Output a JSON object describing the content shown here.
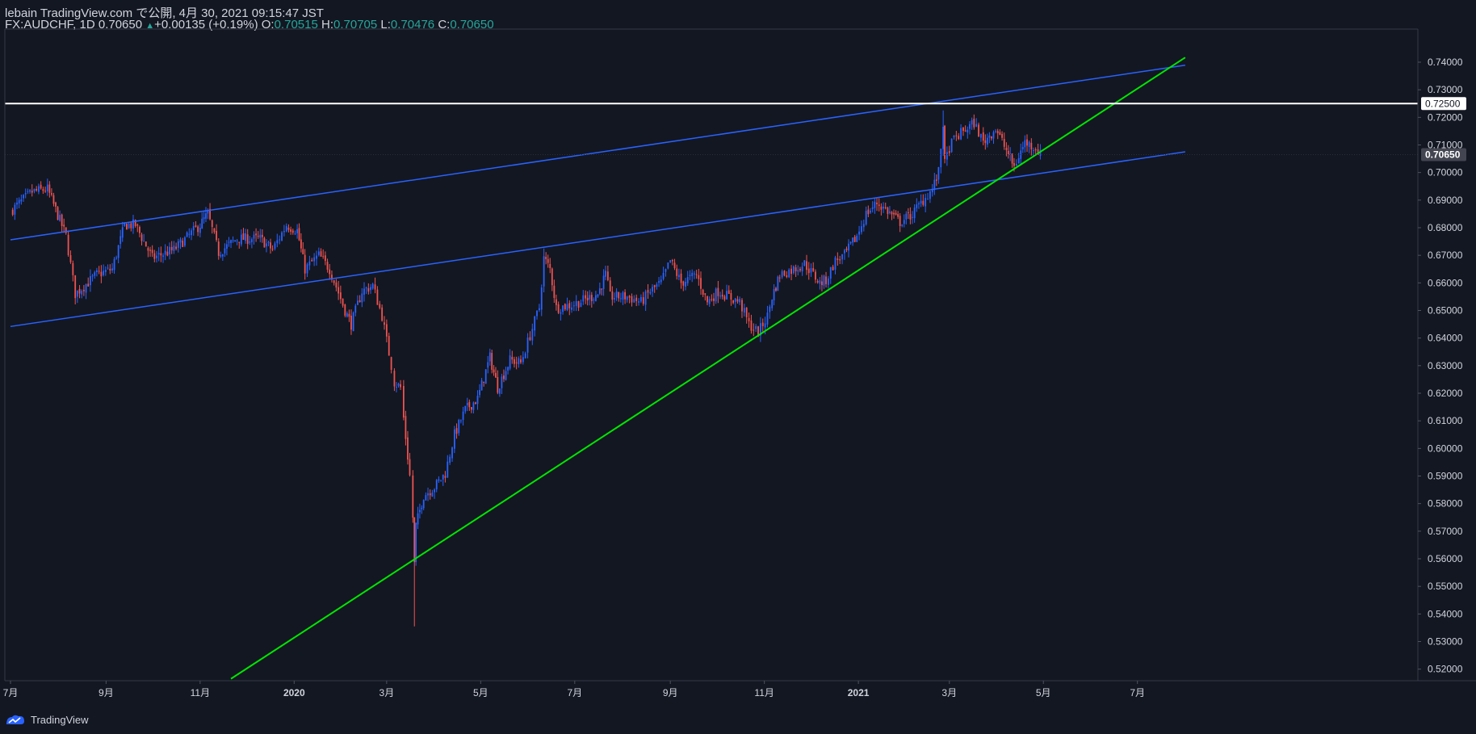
{
  "header": {
    "line1": "lebain TradingView.com で公開, 4月 30, 2021 09:15:47 JST",
    "symbol": "FX:AUDCHF, 1D 0.70650",
    "change": "+0.00135 (+0.19%)",
    "o_label": "O:",
    "o": "0.70515",
    "h_label": "H:",
    "h": "0.70705",
    "l_label": "L:",
    "l": "0.70476",
    "c_label": "C:",
    "c": "0.70650"
  },
  "footer": {
    "brand": "TradingView"
  },
  "colors": {
    "background": "#131722",
    "up": "#2962ff",
    "down": "#ef5350",
    "channel": "#2962ff",
    "trendline": "#00e600",
    "level": "#ffffff",
    "text": "#d1d4dc"
  },
  "chart_data": {
    "type": "candlestick",
    "symbol": "FX:AUDCHF",
    "timeframe": "1D",
    "x_ticks": [
      "7月",
      "9月",
      "11月",
      "2020",
      "3月",
      "5月",
      "7月",
      "9月",
      "11月",
      "2021",
      "3月",
      "5月",
      "7月"
    ],
    "y_ticks": [
      "0.74000",
      "0.73000",
      "0.72000",
      "0.71000",
      "0.70000",
      "0.69000",
      "0.68000",
      "0.67000",
      "0.66000",
      "0.65000",
      "0.64000",
      "0.63000",
      "0.62000",
      "0.61000",
      "0.60000",
      "0.59000",
      "0.58000",
      "0.57000",
      "0.56000",
      "0.55000",
      "0.54000",
      "0.53000",
      "0.52000"
    ],
    "ylim": [
      0.515,
      0.742
    ],
    "price_labels": {
      "level": "0.72500",
      "last": "0.70650"
    },
    "horizontal_level": 0.725,
    "last_price": 0.7065,
    "anchors": [
      [
        "2019-07-01",
        0.686
      ],
      [
        "2019-07-15",
        0.693
      ],
      [
        "2019-07-25",
        0.694
      ],
      [
        "2019-08-06",
        0.677
      ],
      [
        "2019-08-12",
        0.656
      ],
      [
        "2019-08-26",
        0.663
      ],
      [
        "2019-09-05",
        0.665
      ],
      [
        "2019-09-13",
        0.681
      ],
      [
        "2019-09-20",
        0.681
      ],
      [
        "2019-10-01",
        0.669
      ],
      [
        "2019-10-15",
        0.672
      ],
      [
        "2019-11-01",
        0.681
      ],
      [
        "2019-11-06",
        0.685
      ],
      [
        "2019-11-13",
        0.671
      ],
      [
        "2019-11-25",
        0.676
      ],
      [
        "2019-12-10",
        0.676
      ],
      [
        "2019-12-18",
        0.672
      ],
      [
        "2019-12-27",
        0.681
      ],
      [
        "2020-01-03",
        0.679
      ],
      [
        "2020-01-08",
        0.665
      ],
      [
        "2020-01-17",
        0.67
      ],
      [
        "2020-01-24",
        0.665
      ],
      [
        "2020-02-03",
        0.65
      ],
      [
        "2020-02-07",
        0.645
      ],
      [
        "2020-02-14",
        0.657
      ],
      [
        "2020-02-21",
        0.659
      ],
      [
        "2020-02-27",
        0.648
      ],
      [
        "2020-03-04",
        0.63
      ],
      [
        "2020-03-06",
        0.624
      ],
      [
        "2020-03-10",
        0.622
      ],
      [
        "2020-03-12",
        0.611
      ],
      [
        "2020-03-16",
        0.59
      ],
      [
        "2020-03-18",
        0.575
      ],
      [
        "2020-03-19",
        0.558
      ],
      [
        "2020-03-20",
        0.572
      ],
      [
        "2020-03-25",
        0.583
      ],
      [
        "2020-04-01",
        0.586
      ],
      [
        "2020-04-08",
        0.591
      ],
      [
        "2020-04-14",
        0.605
      ],
      [
        "2020-04-21",
        0.614
      ],
      [
        "2020-04-29",
        0.618
      ],
      [
        "2020-05-07",
        0.633
      ],
      [
        "2020-05-12",
        0.622
      ],
      [
        "2020-05-20",
        0.632
      ],
      [
        "2020-05-27",
        0.631
      ],
      [
        "2020-06-02",
        0.641
      ],
      [
        "2020-06-08",
        0.651
      ],
      [
        "2020-06-11",
        0.669
      ],
      [
        "2020-06-15",
        0.665
      ],
      [
        "2020-06-19",
        0.651
      ],
      [
        "2020-06-29",
        0.652
      ],
      [
        "2020-07-08",
        0.654
      ],
      [
        "2020-07-16",
        0.656
      ],
      [
        "2020-07-21",
        0.663
      ],
      [
        "2020-07-24",
        0.655
      ],
      [
        "2020-08-04",
        0.655
      ],
      [
        "2020-08-13",
        0.653
      ],
      [
        "2020-08-19",
        0.657
      ],
      [
        "2020-08-26",
        0.66
      ],
      [
        "2020-09-01",
        0.668
      ],
      [
        "2020-09-08",
        0.66
      ],
      [
        "2020-09-18",
        0.663
      ],
      [
        "2020-09-25",
        0.653
      ],
      [
        "2020-10-02",
        0.657
      ],
      [
        "2020-10-09",
        0.655
      ],
      [
        "2020-10-16",
        0.653
      ],
      [
        "2020-10-22",
        0.645
      ],
      [
        "2020-10-28",
        0.642
      ],
      [
        "2020-11-03",
        0.648
      ],
      [
        "2020-11-06",
        0.655
      ],
      [
        "2020-11-11",
        0.663
      ],
      [
        "2020-11-20",
        0.665
      ],
      [
        "2020-11-27",
        0.667
      ],
      [
        "2020-12-07",
        0.66
      ],
      [
        "2020-12-11",
        0.661
      ],
      [
        "2020-12-17",
        0.668
      ],
      [
        "2020-12-23",
        0.67
      ],
      [
        "2020-12-31",
        0.677
      ],
      [
        "2021-01-06",
        0.685
      ],
      [
        "2021-01-13",
        0.689
      ],
      [
        "2021-01-20",
        0.686
      ],
      [
        "2021-01-28",
        0.682
      ],
      [
        "2021-02-05",
        0.685
      ],
      [
        "2021-02-12",
        0.69
      ],
      [
        "2021-02-18",
        0.694
      ],
      [
        "2021-02-22",
        0.7
      ],
      [
        "2021-02-25",
        0.718
      ],
      [
        "2021-02-26",
        0.703
      ],
      [
        "2021-03-01",
        0.709
      ],
      [
        "2021-03-04",
        0.712
      ],
      [
        "2021-03-10",
        0.715
      ],
      [
        "2021-03-17",
        0.718
      ],
      [
        "2021-03-23",
        0.711
      ],
      [
        "2021-03-31",
        0.716
      ],
      [
        "2021-04-07",
        0.708
      ],
      [
        "2021-04-12",
        0.702
      ],
      [
        "2021-04-15",
        0.706
      ],
      [
        "2021-04-19",
        0.711
      ],
      [
        "2021-04-26",
        0.709
      ],
      [
        "2021-04-29",
        0.7065
      ]
    ],
    "drawings": [
      {
        "name": "channel-upper",
        "kind": "trend-line",
        "from": [
          "2019-07-01",
          0.6756
        ],
        "to": [
          "2021-08-01",
          0.7389
        ]
      },
      {
        "name": "channel-lower",
        "kind": "trend-line",
        "from": [
          "2019-07-01",
          0.6442
        ],
        "to": [
          "2021-08-01",
          0.7075
        ]
      },
      {
        "name": "support-trendline",
        "kind": "trend-line",
        "from": [
          "2019-11-21",
          0.5165
        ],
        "to": [
          "2021-08-01",
          0.7417
        ]
      },
      {
        "name": "resistance-level",
        "kind": "horizontal-line",
        "value": 0.725
      }
    ]
  }
}
